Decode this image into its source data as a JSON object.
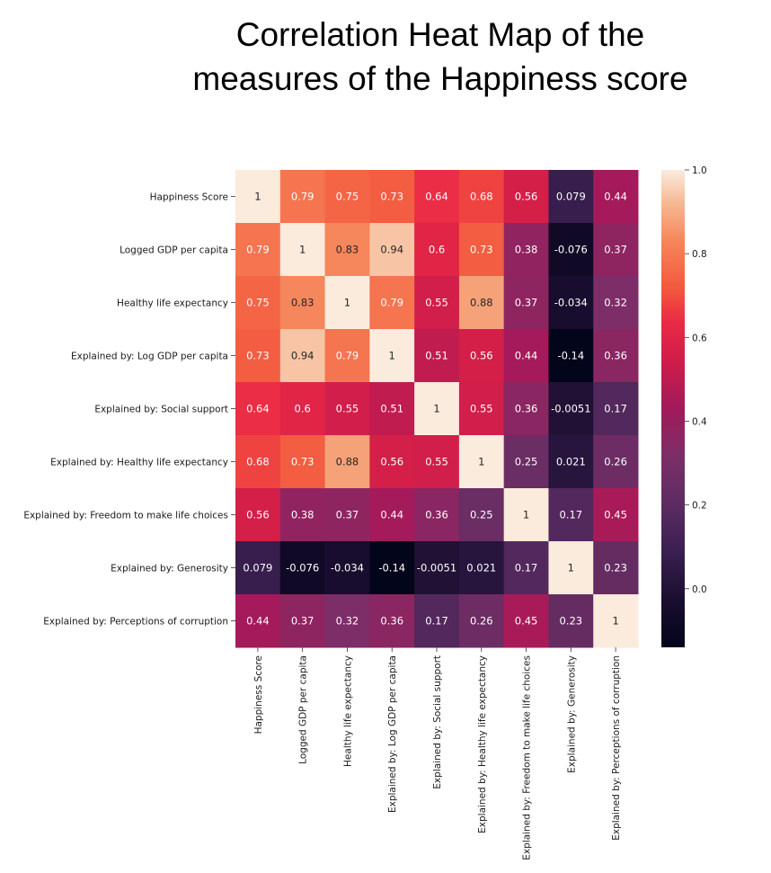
{
  "title": {
    "line1": "Correlation Heat Map of the",
    "line2": "measures of the Happiness score"
  },
  "chart_data": {
    "type": "heatmap",
    "labels": [
      "Happiness Score",
      "Logged GDP per capita",
      "Healthy life expectancy",
      "Explained by: Log GDP per capita",
      "Explained by: Social support",
      "Explained by: Healthy life expectancy",
      "Explained by: Freedom to make life choices",
      "Explained by: Generosity",
      "Explained by: Perceptions of corruption"
    ],
    "values": [
      [
        1,
        0.79,
        0.75,
        0.73,
        0.64,
        0.68,
        0.56,
        0.079,
        0.44
      ],
      [
        0.79,
        1,
        0.83,
        0.94,
        0.6,
        0.73,
        0.38,
        -0.076,
        0.37
      ],
      [
        0.75,
        0.83,
        1,
        0.79,
        0.55,
        0.88,
        0.37,
        -0.034,
        0.32
      ],
      [
        0.73,
        0.94,
        0.79,
        1,
        0.51,
        0.56,
        0.44,
        -0.14,
        0.36
      ],
      [
        0.64,
        0.6,
        0.55,
        0.51,
        1,
        0.55,
        0.36,
        -0.0051,
        0.17
      ],
      [
        0.68,
        0.73,
        0.88,
        0.56,
        0.55,
        1,
        0.25,
        0.021,
        0.26
      ],
      [
        0.56,
        0.38,
        0.37,
        0.44,
        0.36,
        0.25,
        1,
        0.17,
        0.45
      ],
      [
        0.079,
        -0.076,
        -0.034,
        -0.14,
        -0.0051,
        0.021,
        0.17,
        1,
        0.23
      ],
      [
        0.44,
        0.37,
        0.32,
        0.36,
        0.17,
        0.26,
        0.45,
        0.23,
        1
      ]
    ],
    "annotations": [
      [
        "1",
        "0.79",
        "0.75",
        "0.73",
        "0.64",
        "0.68",
        "0.56",
        "0.079",
        "0.44"
      ],
      [
        "0.79",
        "1",
        "0.83",
        "0.94",
        "0.6",
        "0.73",
        "0.38",
        "-0.076",
        "0.37"
      ],
      [
        "0.75",
        "0.83",
        "1",
        "0.79",
        "0.55",
        "0.88",
        "0.37",
        "-0.034",
        "0.32"
      ],
      [
        "0.73",
        "0.94",
        "0.79",
        "1",
        "0.51",
        "0.56",
        "0.44",
        "-0.14",
        "0.36"
      ],
      [
        "0.64",
        "0.6",
        "0.55",
        "0.51",
        "1",
        "0.55",
        "0.36",
        "-0.0051",
        "0.17"
      ],
      [
        "0.68",
        "0.73",
        "0.88",
        "0.56",
        "0.55",
        "1",
        "0.25",
        "0.021",
        "0.26"
      ],
      [
        "0.56",
        "0.38",
        "0.37",
        "0.44",
        "0.36",
        "0.25",
        "1",
        "0.17",
        "0.45"
      ],
      [
        "0.079",
        "-0.076",
        "-0.034",
        "-0.14",
        "-0.0051",
        "0.021",
        "0.17",
        "1",
        "0.23"
      ],
      [
        "0.44",
        "0.37",
        "0.32",
        "0.36",
        "0.17",
        "0.26",
        "0.45",
        "0.23",
        "1"
      ]
    ],
    "colorbar": {
      "range": [
        -0.14,
        1
      ],
      "ticks": [
        0.0,
        0.2,
        0.4,
        0.6,
        0.8,
        1.0
      ],
      "tick_labels": [
        "0.0",
        "0.2",
        "0.4",
        "0.6",
        "0.8",
        "1.0"
      ]
    },
    "colormap": {
      "name": "rocket",
      "stops": [
        [
          0.0,
          "#03051a"
        ],
        [
          0.1,
          "#1a0e2f"
        ],
        [
          0.2,
          "#3a1f50"
        ],
        [
          0.3,
          "#5d2c61"
        ],
        [
          0.4,
          "#7c2e67"
        ],
        [
          0.5,
          "#a11a5b"
        ],
        [
          0.6,
          "#cf1d4a"
        ],
        [
          0.68,
          "#ea2a45"
        ],
        [
          0.75,
          "#f3573d"
        ],
        [
          0.85,
          "#f6855a"
        ],
        [
          0.93,
          "#f6b892"
        ],
        [
          1.0,
          "#faebdd"
        ]
      ]
    }
  }
}
